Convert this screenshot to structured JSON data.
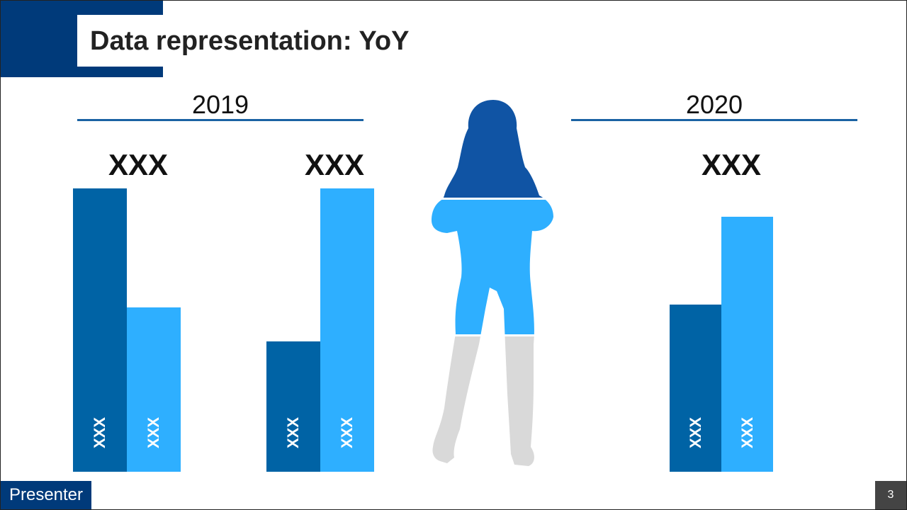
{
  "slide": {
    "title": "Data representation: YoY",
    "presenter_label": "Presenter",
    "page_number": "3"
  },
  "colors": {
    "header_navy": "#003a7a",
    "bar_dark": "#0063a5",
    "bar_light": "#2eafff",
    "rule": "#1a62a3",
    "figure_head": "#1054a4",
    "figure_body": "#2eafff",
    "figure_legs": "#d9d9d9"
  },
  "chart_data": {
    "type": "bar",
    "sections": [
      {
        "year": "2019",
        "groups": [
          {
            "label": "XXX",
            "values": [
              100,
              58
            ],
            "bar_labels": [
              "XXX",
              "XXX"
            ]
          },
          {
            "label": "XXX",
            "values": [
              46,
              100
            ],
            "bar_labels": [
              "XXX",
              "XXX"
            ]
          }
        ]
      },
      {
        "year": "2020",
        "groups": [
          {
            "label": "XXX",
            "values": [
              59,
              90
            ],
            "bar_labels": [
              "XXX",
              "XXX"
            ]
          }
        ]
      }
    ]
  },
  "figure": {
    "head_fill_fraction": 0.27,
    "body_fill_fraction": 0.38,
    "legs_fill_fraction": 0.35
  }
}
